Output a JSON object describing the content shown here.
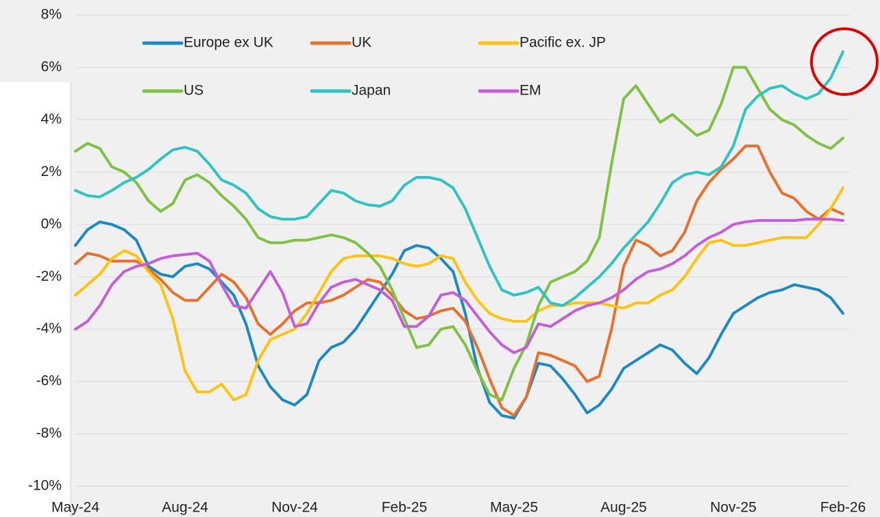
{
  "chart_data": {
    "type": "line",
    "categories": [
      "May-24",
      null,
      null,
      null,
      null,
      null,
      null,
      null,
      null,
      "Aug-24",
      null,
      null,
      null,
      null,
      null,
      null,
      null,
      null,
      "Nov-24",
      null,
      null,
      null,
      null,
      null,
      null,
      null,
      null,
      "Feb-25",
      null,
      null,
      null,
      null,
      null,
      null,
      null,
      null,
      "May-25",
      null,
      null,
      null,
      null,
      null,
      null,
      null,
      null,
      "Aug-25",
      null,
      null,
      null,
      null,
      null,
      null,
      null,
      null,
      "Nov-25",
      null,
      null,
      null,
      null,
      null,
      null,
      null,
      null,
      "Feb-26"
    ],
    "series": [
      {
        "name": "Europe ex UK",
        "color": "#1a8ac6",
        "values": [
          -0.8,
          -0.2,
          0.1,
          0.0,
          -0.2,
          -0.6,
          -1.6,
          -1.9,
          -2.0,
          -1.6,
          -1.5,
          -1.7,
          -2.2,
          -2.7,
          -3.8,
          -5.4,
          -6.2,
          -6.7,
          -6.9,
          -6.5,
          -5.2,
          -4.7,
          -4.5,
          -4.0,
          -3.3,
          -2.6,
          -1.9,
          -1.0,
          -0.8,
          -0.9,
          -1.3,
          -1.8,
          -3.4,
          -5.5,
          -6.8,
          -7.3,
          -7.4,
          -6.6,
          -5.3,
          -5.4,
          -5.9,
          -6.5,
          -7.2,
          -6.9,
          -6.3,
          -5.5,
          -5.2,
          -4.9,
          -4.6,
          -4.8,
          -5.3,
          -5.7,
          -5.1,
          -4.2,
          -3.4,
          -3.1,
          -2.8,
          -2.6,
          -2.5,
          -2.3,
          -2.4,
          -2.5,
          -2.8,
          -3.4
        ]
      },
      {
        "name": "UK",
        "color": "#e8702a",
        "values": [
          -1.5,
          -1.1,
          -1.2,
          -1.4,
          -1.4,
          -1.4,
          -1.7,
          -2.1,
          -2.6,
          -2.9,
          -2.9,
          -2.4,
          -1.9,
          -2.2,
          -2.8,
          -3.8,
          -4.2,
          -3.8,
          -3.3,
          -3.0,
          -3.0,
          -2.9,
          -2.7,
          -2.4,
          -2.1,
          -2.2,
          -2.7,
          -3.3,
          -3.6,
          -3.5,
          -3.3,
          -3.2,
          -3.7,
          -4.7,
          -5.9,
          -7.0,
          -7.3,
          -6.6,
          -4.9,
          -5.0,
          -5.2,
          -5.4,
          -6.0,
          -5.8,
          -4.0,
          -1.6,
          -0.6,
          -0.8,
          -1.2,
          -1.0,
          -0.3,
          0.9,
          1.6,
          2.1,
          2.5,
          3.0,
          3.0,
          2.0,
          1.2,
          1.0,
          0.5,
          0.2,
          0.6,
          0.4
        ]
      },
      {
        "name": "Pacific ex. JP",
        "color": "#ffc20e",
        "values": [
          -2.7,
          -2.3,
          -1.9,
          -1.3,
          -1.0,
          -1.2,
          -1.8,
          -2.3,
          -3.6,
          -5.6,
          -6.4,
          -6.4,
          -6.1,
          -6.7,
          -6.5,
          -5.2,
          -4.4,
          -4.2,
          -4.0,
          -3.4,
          -2.6,
          -1.8,
          -1.3,
          -1.2,
          -1.2,
          -1.2,
          -1.3,
          -1.5,
          -1.6,
          -1.5,
          -1.2,
          -1.3,
          -2.2,
          -2.9,
          -3.4,
          -3.6,
          -3.7,
          -3.7,
          -3.3,
          -3.1,
          -3.1,
          -3.0,
          -3.0,
          -3.0,
          -3.1,
          -3.2,
          -3.0,
          -3.0,
          -2.7,
          -2.5,
          -2.0,
          -1.3,
          -0.7,
          -0.6,
          -0.8,
          -0.8,
          -0.7,
          -0.6,
          -0.5,
          -0.5,
          -0.5,
          0.0,
          0.6,
          1.4
        ]
      },
      {
        "name": "US",
        "color": "#7dc242",
        "values": [
          2.8,
          3.1,
          2.9,
          2.2,
          2.0,
          1.6,
          0.9,
          0.5,
          0.8,
          1.7,
          1.9,
          1.6,
          1.1,
          0.7,
          0.2,
          -0.5,
          -0.7,
          -0.7,
          -0.6,
          -0.6,
          -0.5,
          -0.4,
          -0.5,
          -0.7,
          -1.1,
          -1.6,
          -2.5,
          -3.6,
          -4.7,
          -4.6,
          -4.0,
          -3.9,
          -4.6,
          -5.6,
          -6.5,
          -6.7,
          -5.5,
          -4.6,
          -3.1,
          -2.2,
          -2.0,
          -1.8,
          -1.4,
          -0.5,
          2.3,
          4.8,
          5.3,
          4.6,
          3.9,
          4.2,
          3.8,
          3.4,
          3.6,
          4.6,
          6.0,
          6.0,
          5.2,
          4.4,
          4.0,
          3.8,
          3.4,
          3.1,
          2.9,
          3.3
        ]
      },
      {
        "name": "Japan",
        "color": "#2ec4c4",
        "values": [
          1.3,
          1.1,
          1.05,
          1.3,
          1.6,
          1.8,
          2.1,
          2.5,
          2.85,
          2.95,
          2.8,
          2.3,
          1.7,
          1.5,
          1.2,
          0.6,
          0.3,
          0.2,
          0.2,
          0.3,
          0.8,
          1.3,
          1.2,
          0.9,
          0.75,
          0.7,
          0.9,
          1.5,
          1.8,
          1.8,
          1.7,
          1.4,
          0.6,
          -0.5,
          -1.6,
          -2.5,
          -2.7,
          -2.6,
          -2.4,
          -3.0,
          -3.1,
          -2.8,
          -2.4,
          -2.0,
          -1.5,
          -0.9,
          -0.4,
          0.1,
          0.8,
          1.6,
          1.9,
          2.0,
          1.9,
          2.2,
          3.0,
          4.4,
          4.9,
          5.2,
          5.3,
          5.0,
          4.8,
          5.0,
          5.6,
          6.6
        ]
      },
      {
        "name": "EM",
        "color": "#c55dd8",
        "values": [
          -4.0,
          -3.7,
          -3.1,
          -2.3,
          -1.8,
          -1.6,
          -1.5,
          -1.3,
          -1.2,
          -1.15,
          -1.1,
          -1.4,
          -2.3,
          -3.1,
          -3.2,
          -2.5,
          -1.8,
          -2.6,
          -3.9,
          -3.8,
          -3.0,
          -2.4,
          -2.2,
          -2.1,
          -2.3,
          -2.5,
          -2.9,
          -3.9,
          -3.9,
          -3.5,
          -2.7,
          -2.6,
          -2.9,
          -3.5,
          -4.1,
          -4.6,
          -4.9,
          -4.7,
          -3.8,
          -3.9,
          -3.6,
          -3.3,
          -3.1,
          -3.0,
          -2.8,
          -2.5,
          -2.1,
          -1.8,
          -1.7,
          -1.5,
          -1.2,
          -0.8,
          -0.5,
          -0.3,
          0.0,
          0.1,
          0.15,
          0.15,
          0.15,
          0.15,
          0.2,
          0.2,
          0.2,
          0.15
        ]
      }
    ],
    "ylim": [
      -10,
      8
    ],
    "yticks": [
      {
        "value": -10,
        "label": "-10%"
      },
      {
        "value": -8,
        "label": "-8%"
      },
      {
        "value": -6,
        "label": "-6%"
      },
      {
        "value": -4,
        "label": "-4%"
      },
      {
        "value": -2,
        "label": "-2%"
      },
      {
        "value": 0,
        "label": "0%"
      },
      {
        "value": 2,
        "label": "2%"
      },
      {
        "value": 4,
        "label": "4%"
      },
      {
        "value": 6,
        "label": "6%"
      },
      {
        "value": 8,
        "label": "8%"
      }
    ],
    "grid": true
  }
}
